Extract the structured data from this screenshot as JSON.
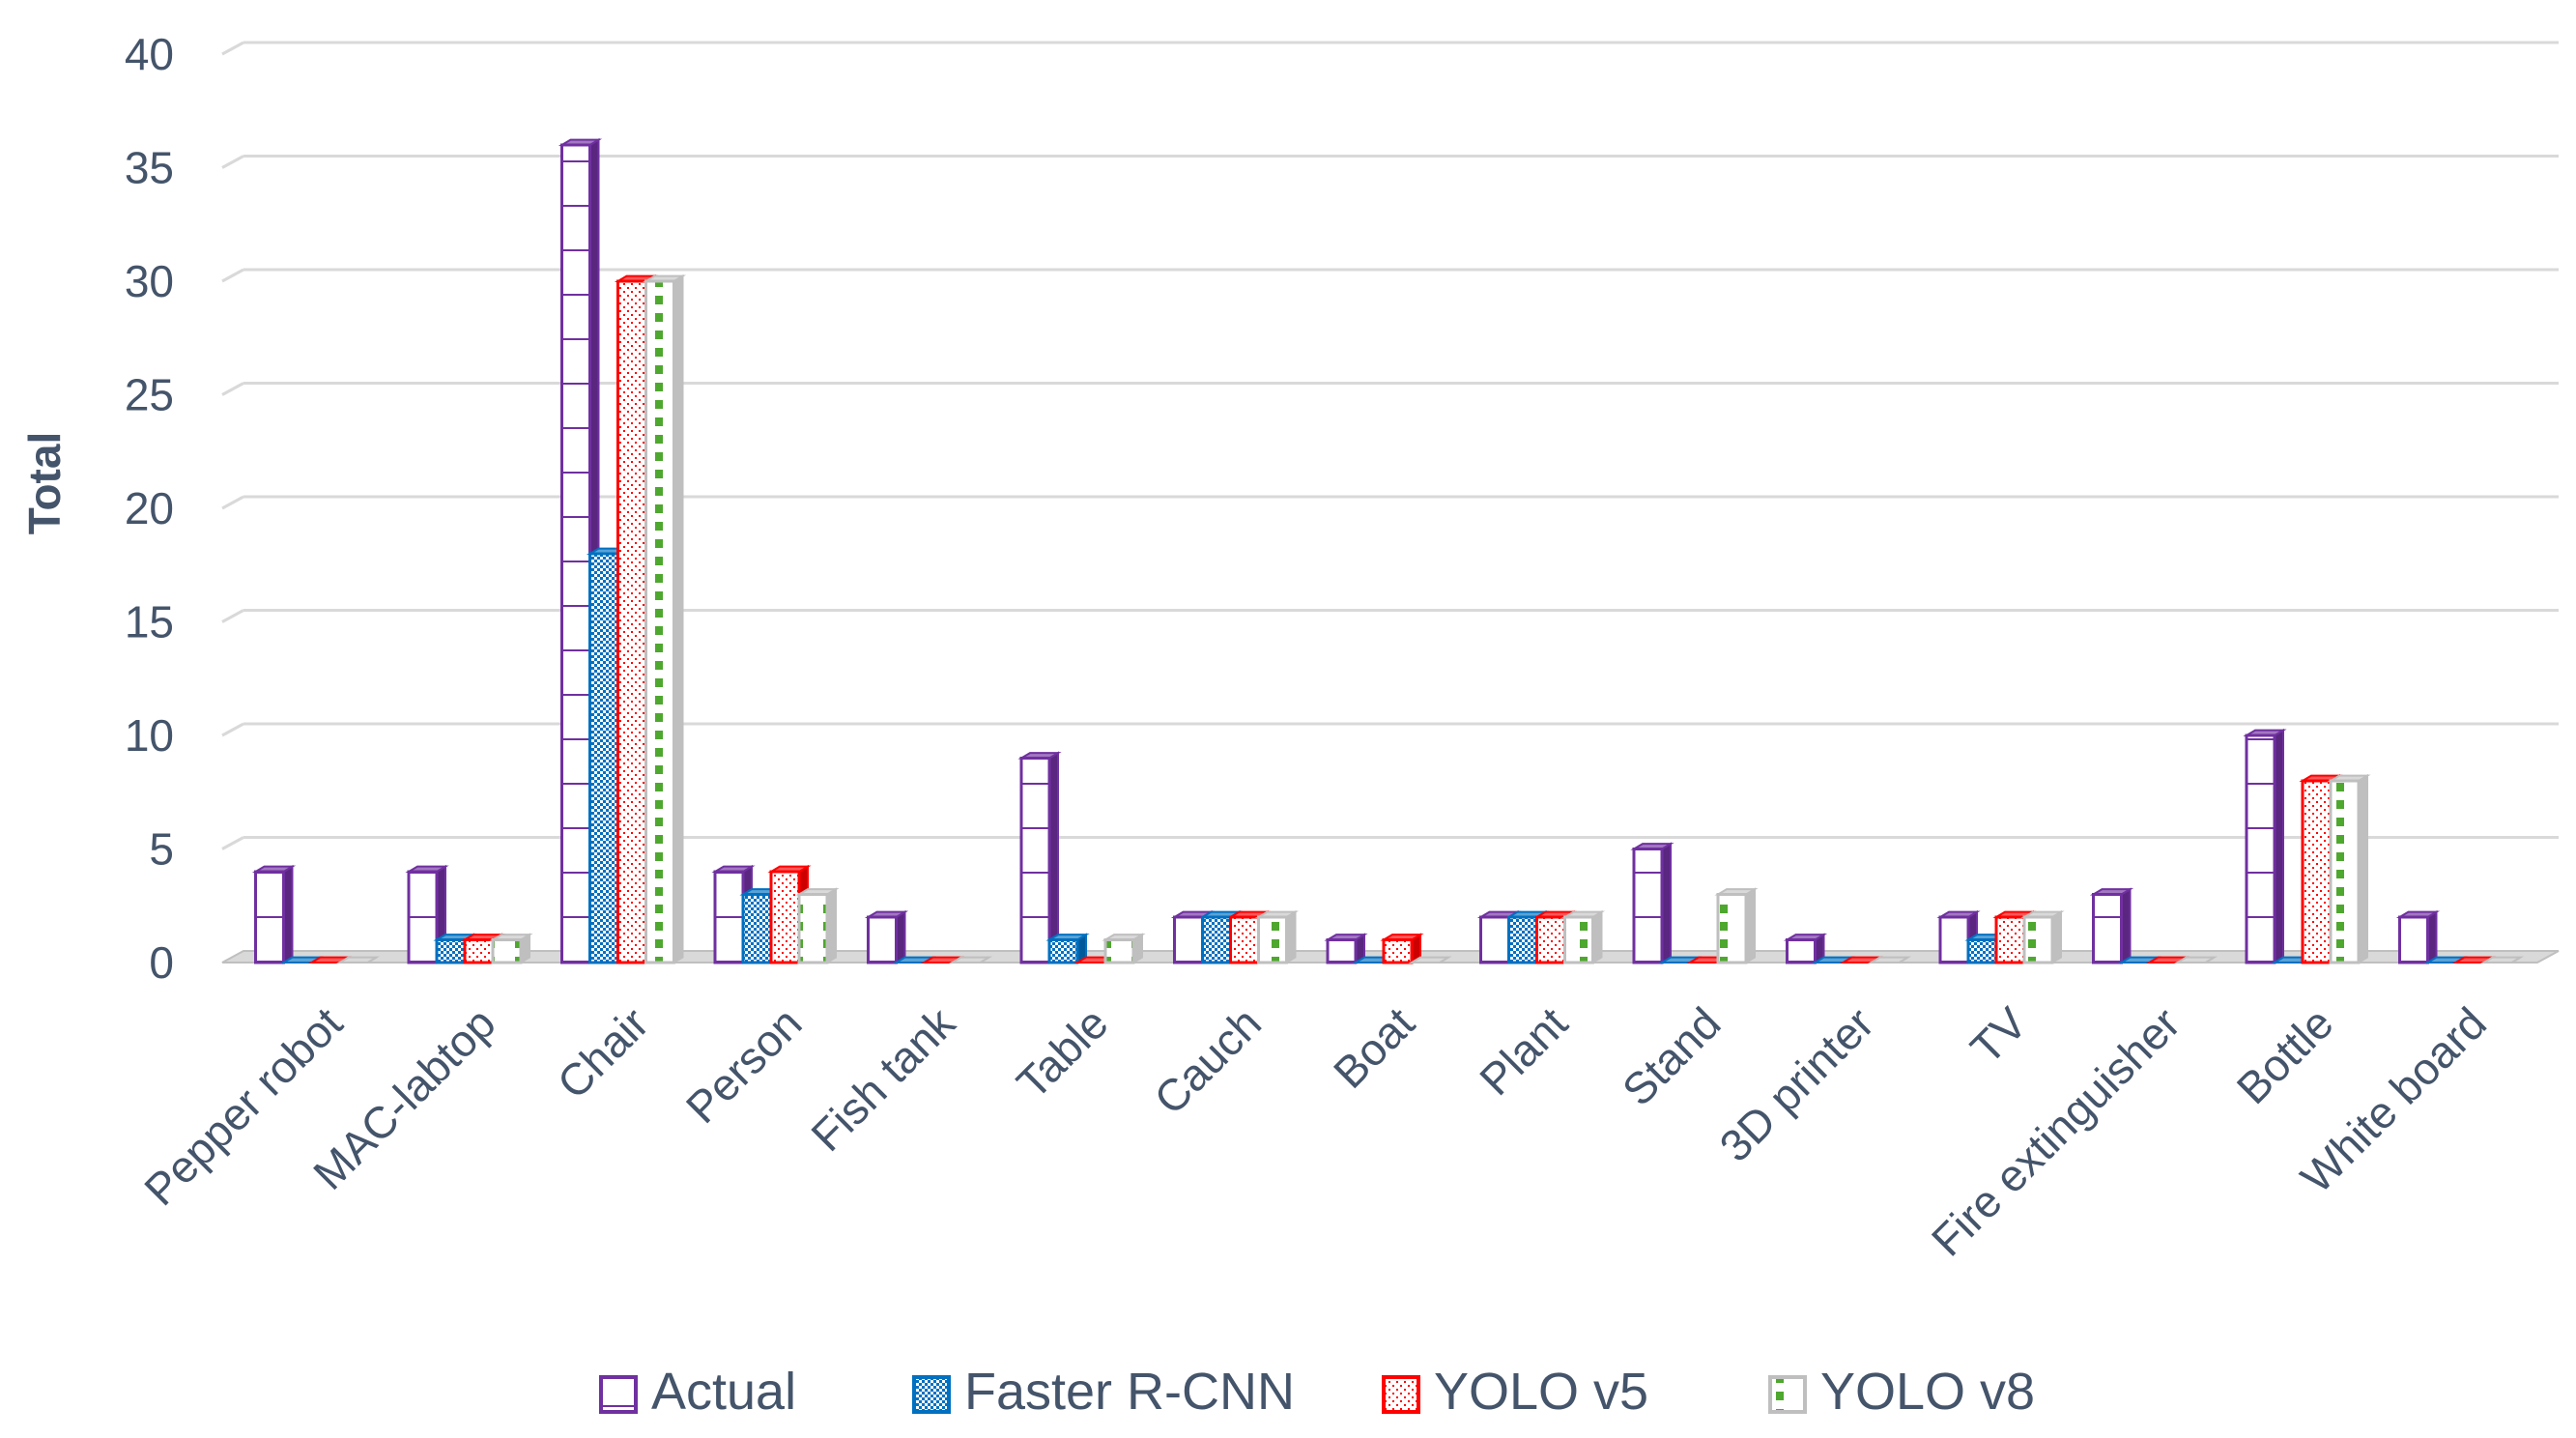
{
  "chart_data": {
    "type": "bar",
    "title": "",
    "xlabel": "",
    "ylabel": "Total",
    "ylim": [
      0,
      40
    ],
    "yticks": [
      0,
      5,
      10,
      15,
      20,
      25,
      30,
      35,
      40
    ],
    "grid": true,
    "legend_position": "bottom",
    "categories": [
      "Pepper robot",
      "MAC-labtop",
      "Chair",
      "Person",
      "Fish tank",
      "Table",
      "Cauch",
      "Boat",
      "Plant",
      "Stand",
      "3D printer",
      "TV",
      "Fire extinguisher",
      "Bottle",
      "White board"
    ],
    "series": [
      {
        "name": "Actual",
        "color": "#7030a0",
        "pattern": "hlines",
        "values": [
          4,
          4,
          36,
          4,
          2,
          9,
          2,
          1,
          2,
          5,
          1,
          2,
          3,
          10,
          2
        ]
      },
      {
        "name": "Faster R-CNN",
        "color": "#0070c0",
        "pattern": "checker",
        "values": [
          0,
          1,
          18,
          3,
          0,
          1,
          2,
          0,
          2,
          0,
          0,
          1,
          0,
          0,
          0
        ]
      },
      {
        "name": "YOLO v5",
        "color": "#ff0000",
        "pattern": "dots",
        "values": [
          0,
          1,
          30,
          4,
          0,
          0,
          2,
          1,
          2,
          0,
          0,
          2,
          0,
          8,
          0
        ]
      },
      {
        "name": "YOLO v8",
        "color": "#4ea72e",
        "pattern": "dashes",
        "values": [
          0,
          1,
          30,
          3,
          0,
          1,
          2,
          0,
          2,
          3,
          0,
          2,
          0,
          8,
          0
        ]
      }
    ]
  }
}
